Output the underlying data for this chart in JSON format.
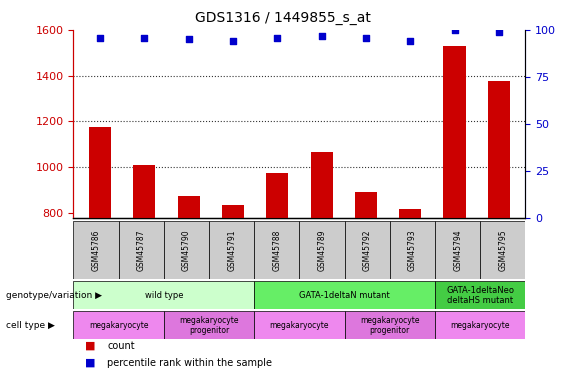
{
  "title": "GDS1316 / 1449855_s_at",
  "samples": [
    "GSM45786",
    "GSM45787",
    "GSM45790",
    "GSM45791",
    "GSM45788",
    "GSM45789",
    "GSM45792",
    "GSM45793",
    "GSM45794",
    "GSM45795"
  ],
  "counts": [
    1175,
    1010,
    875,
    835,
    975,
    1065,
    890,
    815,
    1530,
    1375
  ],
  "percentile_ranks": [
    96,
    96,
    95,
    94,
    96,
    97,
    96,
    94,
    100,
    99
  ],
  "ylim_left": [
    780,
    1600
  ],
  "ylim_right": [
    0,
    100
  ],
  "yticks_left": [
    800,
    1000,
    1200,
    1400,
    1600
  ],
  "yticks_right": [
    0,
    25,
    50,
    75,
    100
  ],
  "bar_color": "#cc0000",
  "scatter_color": "#0000cc",
  "grid_color": "#333333",
  "genotype_groups": [
    {
      "label": "wild type",
      "start": 0,
      "end": 4,
      "color": "#ccffcc"
    },
    {
      "label": "GATA-1deltaN mutant",
      "start": 4,
      "end": 8,
      "color": "#66ee66"
    },
    {
      "label": "GATA-1deltaNeo\ndeltaHS mutant",
      "start": 8,
      "end": 10,
      "color": "#44cc44"
    }
  ],
  "cell_type_groups": [
    {
      "label": "megakaryocyte",
      "start": 0,
      "end": 2,
      "color": "#ee88ee"
    },
    {
      "label": "megakaryocyte\nprogenitor",
      "start": 2,
      "end": 4,
      "color": "#dd77dd"
    },
    {
      "label": "megakaryocyte",
      "start": 4,
      "end": 6,
      "color": "#ee88ee"
    },
    {
      "label": "megakaryocyte\nprogenitor",
      "start": 6,
      "end": 8,
      "color": "#dd77dd"
    },
    {
      "label": "megakaryocyte",
      "start": 8,
      "end": 10,
      "color": "#ee88ee"
    }
  ],
  "xlabel_color": "#000000",
  "left_axis_color": "#cc0000",
  "right_axis_color": "#0000cc",
  "tick_label_bg": "#cccccc",
  "legend_count_color": "#cc0000",
  "legend_pct_color": "#0000cc",
  "background_color": "#ffffff"
}
